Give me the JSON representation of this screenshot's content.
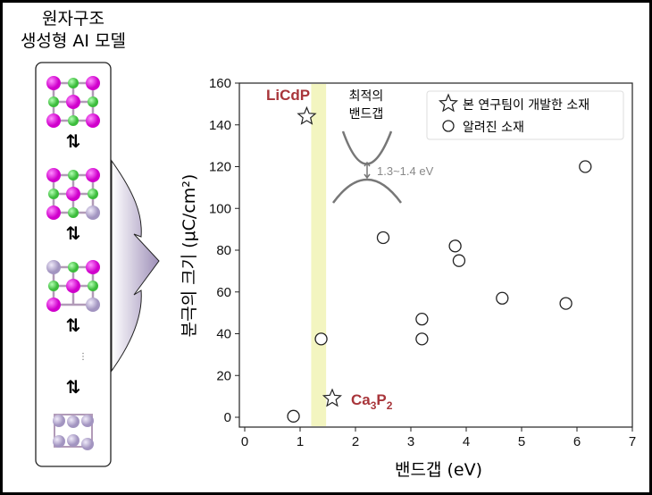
{
  "panel": {
    "title_line1": "원자구조",
    "title_line2": "생성형 AI 모델",
    "swap_symbol": "⇅",
    "ellipsis": "⋮"
  },
  "colors": {
    "magenta": "#e01adf",
    "green": "#4fcf4f",
    "lavender": "#b7a9cf",
    "highlight": "#f3f5c0",
    "label_red": "#a8353a",
    "annotation_gray": "#888888"
  },
  "chart_data": {
    "type": "scatter",
    "xlabel": "밴드갭 (eV)",
    "ylabel": "분극의 크기 (μC/cm²)",
    "xlim": [
      0,
      7
    ],
    "ylim": [
      -5,
      160
    ],
    "xticks": [
      0,
      1,
      2,
      3,
      4,
      5,
      6,
      7
    ],
    "yticks": [
      0,
      20,
      40,
      60,
      80,
      100,
      120,
      140,
      160
    ],
    "grid": false,
    "legend_position": "top-right",
    "highlight_band": {
      "x_range": [
        1.2,
        1.47
      ],
      "label_line1": "최적의",
      "label_line2": "밴드갭",
      "gap_label": "1.3~1.4 eV"
    },
    "series": [
      {
        "name": "본 연구팀이 개발한 소재",
        "marker": "star",
        "points": [
          {
            "x": 1.12,
            "y": 144,
            "label": "LiCdP"
          },
          {
            "x": 1.58,
            "y": 9,
            "label": "Ca3P2"
          }
        ]
      },
      {
        "name": "알려진 소재",
        "marker": "circle",
        "points": [
          {
            "x": 0.88,
            "y": 0.5
          },
          {
            "x": 1.38,
            "y": 37.5
          },
          {
            "x": 2.5,
            "y": 86
          },
          {
            "x": 3.2,
            "y": 47
          },
          {
            "x": 3.2,
            "y": 37.5
          },
          {
            "x": 3.8,
            "y": 82
          },
          {
            "x": 3.87,
            "y": 75
          },
          {
            "x": 4.65,
            "y": 57
          },
          {
            "x": 5.8,
            "y": 54.5
          },
          {
            "x": 6.15,
            "y": 120
          }
        ]
      }
    ]
  }
}
